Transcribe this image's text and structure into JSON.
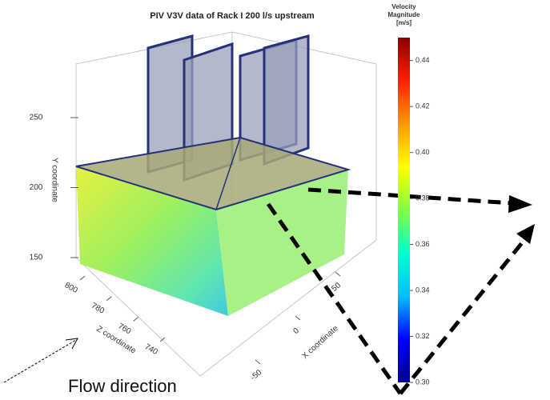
{
  "chart_data": {
    "type": "scatter3d",
    "title": "PIV V3V data of Rack I 200 l/s upstream",
    "colorbar_title": [
      "Velocity",
      "Magnitude",
      "[m/s]"
    ],
    "colorbar_colors": [
      "#00008b",
      "#0000ff",
      "#00bfff",
      "#00ffd0",
      "#80ff40",
      "#ffff00",
      "#ff9900",
      "#ff2000",
      "#8b0000"
    ],
    "clim": [
      0.3,
      0.45
    ],
    "cticks": [
      {
        "value": 0.3,
        "label": "0.30"
      },
      0.32,
      0.34,
      0.36,
      0.38,
      {
        "value": 0.4,
        "label": "0.40"
      },
      0.42,
      0.44
    ],
    "ylabel": "Y coordinate",
    "ylim": [
      150,
      250
    ],
    "yticks": [
      150,
      200,
      250
    ],
    "zlabel": "Z coordinate",
    "zlim": [
      800,
      740
    ],
    "zticks": [
      800,
      780,
      760,
      740
    ],
    "xlabel": "X coordinate",
    "xlim": [
      50,
      -50
    ],
    "xticks": [
      50,
      0,
      -50
    ],
    "annotation": "Flow direction"
  }
}
